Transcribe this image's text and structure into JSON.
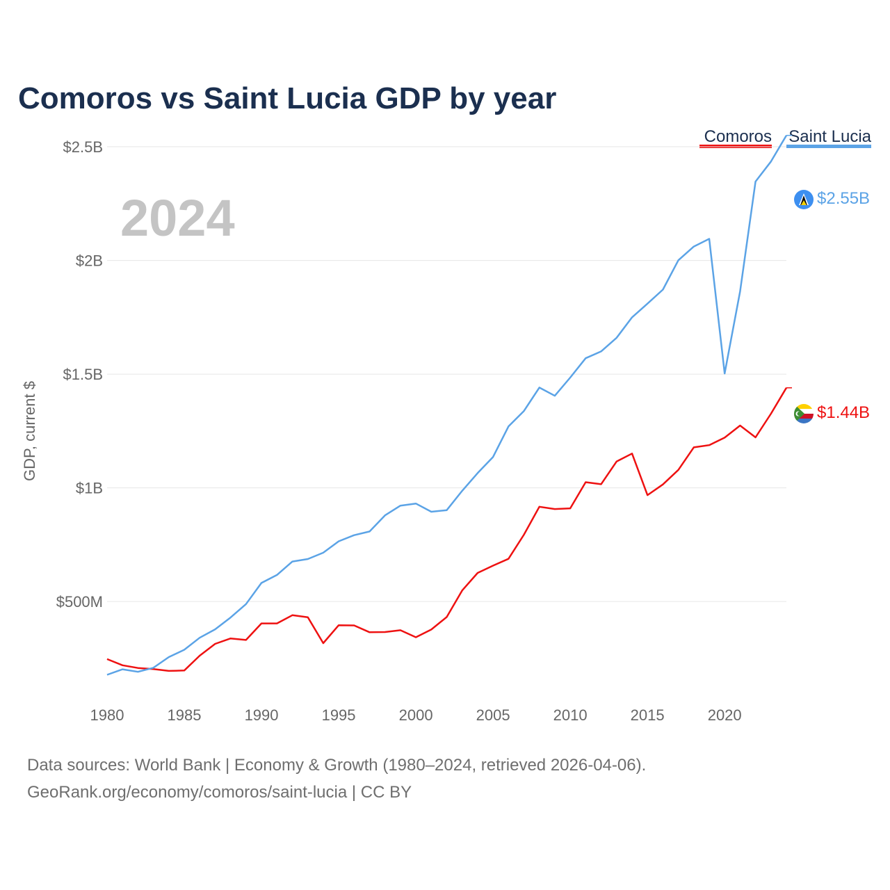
{
  "title": "Comoros vs Saint Lucia GDP by year",
  "year_label": "2024",
  "source": {
    "line1": "Data sources: World Bank | Economy & Growth (1980–2024, retrieved 2026-04-06).",
    "line2": "GeoRank.org/economy/comoros/saint-lucia | CC BY"
  },
  "colors": {
    "comoros": "#ee1111",
    "saint_lucia": "#5ba3e6",
    "title": "#1b2f4f",
    "flag_lucia": "#3d8ff0"
  },
  "chart_data": {
    "type": "line",
    "title": "Comoros vs Saint Lucia GDP by year",
    "xlabel": "",
    "ylabel": "GDP, current $",
    "xlim": [
      1980,
      2024
    ],
    "ylim": [
      100000000,
      2650000000
    ],
    "x_ticks": [
      1980,
      1985,
      1990,
      1995,
      2000,
      2005,
      2010,
      2015,
      2020
    ],
    "x_tick_labels": [
      "1980",
      "1985",
      "1990",
      "1995",
      "2000",
      "2005",
      "2010",
      "2015",
      "2020"
    ],
    "y_ticks": [
      500000000,
      1000000000,
      1500000000,
      2000000000,
      2500000000
    ],
    "y_tick_labels": [
      "$500M",
      "$1B",
      "$1.5B",
      "$2B",
      "$2.5B"
    ],
    "legend_position": "top-right",
    "x": [
      1980,
      1981,
      1982,
      1983,
      1984,
      1985,
      1986,
      1987,
      1988,
      1989,
      1990,
      1991,
      1992,
      1993,
      1994,
      1995,
      1996,
      1997,
      1998,
      1999,
      2000,
      2001,
      2002,
      2003,
      2004,
      2005,
      2006,
      2007,
      2008,
      2009,
      2010,
      2011,
      2012,
      2013,
      2014,
      2015,
      2016,
      2017,
      2018,
      2019,
      2020,
      2021,
      2022,
      2023,
      2024
    ],
    "series": [
      {
        "name": "Comoros",
        "key": "comoros",
        "color": "#ee1111",
        "end_label": "$1.44B",
        "values": [
          247000000,
          220000000,
          208000000,
          203000000,
          195000000,
          197000000,
          262000000,
          314000000,
          338000000,
          331000000,
          404000000,
          404000000,
          440000000,
          431000000,
          317000000,
          396000000,
          395000000,
          365000000,
          366000000,
          374000000,
          343000000,
          377000000,
          432000000,
          549000000,
          626000000,
          658000000,
          688000000,
          794000000,
          917000000,
          907000000,
          910000000,
          1025000000,
          1016000000,
          1116000000,
          1151000000,
          968000000,
          1015000000,
          1079000000,
          1178000000,
          1188000000,
          1221000000,
          1274000000,
          1222000000,
          1326000000,
          1440000000
        ]
      },
      {
        "name": "Saint Lucia",
        "key": "saint_lucia",
        "color": "#5ba3e6",
        "end_label": "$2.55B",
        "values": [
          178000000,
          202000000,
          191000000,
          209000000,
          256000000,
          288000000,
          341000000,
          378000000,
          430000000,
          489000000,
          582000000,
          617000000,
          676000000,
          687000000,
          715000000,
          765000000,
          792000000,
          808000000,
          879000000,
          922000000,
          931000000,
          895000000,
          902000000,
          987000000,
          1065000000,
          1136000000,
          1270000000,
          1338000000,
          1441000000,
          1405000000,
          1485000000,
          1570000000,
          1600000000,
          1660000000,
          1750000000,
          1810000000,
          1872000000,
          2001000000,
          2061000000,
          2095000000,
          1503000000,
          1864000000,
          2347000000,
          2435000000,
          2550000000
        ]
      }
    ]
  }
}
